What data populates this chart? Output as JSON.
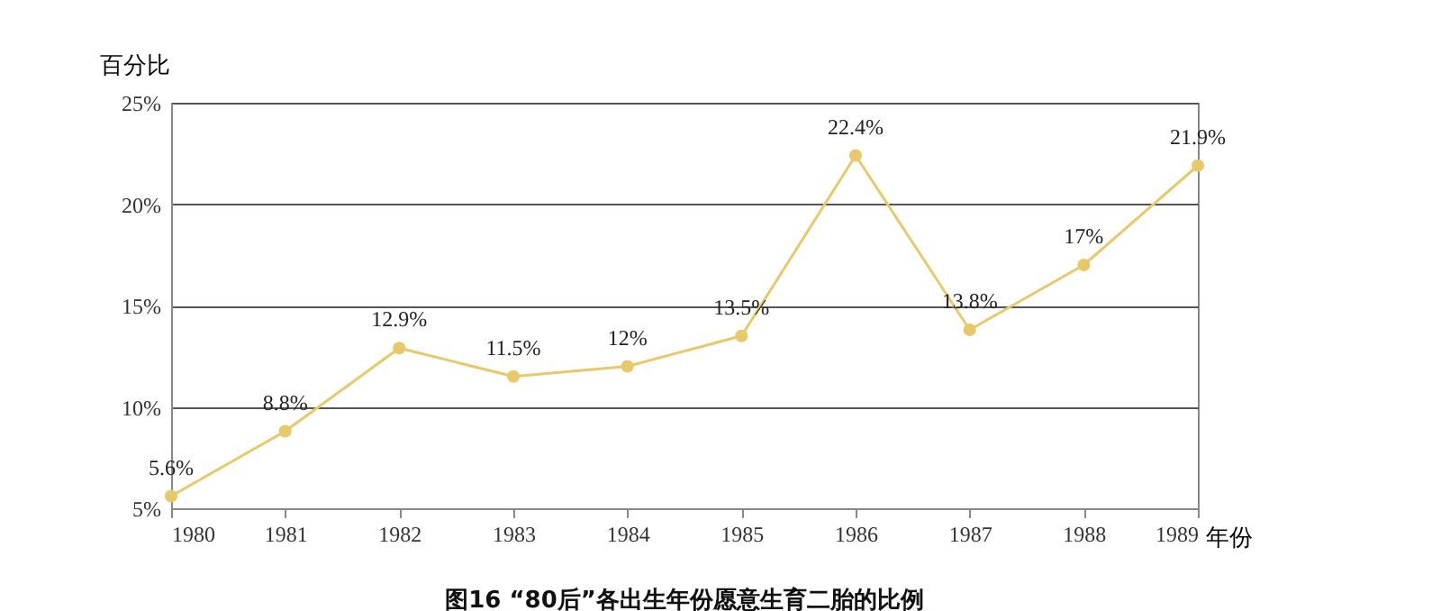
{
  "chart_data": {
    "type": "line",
    "title": "图16 “80后”各出生年份愿意生育二胎的比例",
    "xlabel": "年份",
    "ylabel": "百分比",
    "x": [
      1980,
      1981,
      1982,
      1983,
      1984,
      1985,
      1986,
      1987,
      1988,
      1989
    ],
    "series": [
      {
        "color": "#e8c96a",
        "values": [
          5.6,
          8.8,
          12.9,
          11.5,
          12,
          13.5,
          22.4,
          13.8,
          17,
          21.9
        ],
        "value_labels": [
          "5.6%",
          "8.8%",
          "12.9%",
          "11.5%",
          "12%",
          "13.5%",
          "22.4%",
          "13.8%",
          "17%",
          "21.9%"
        ]
      }
    ],
    "xlim": [
      1980,
      1989
    ],
    "xticks": [
      1980,
      1981,
      1982,
      1983,
      1984,
      1985,
      1986,
      1987,
      1988,
      1989
    ],
    "ylim": [
      5,
      25
    ],
    "yticks": [
      {
        "value": 5,
        "label": "5%"
      },
      {
        "value": 10,
        "label": "10%"
      },
      {
        "value": 15,
        "label": "15%"
      },
      {
        "value": 20,
        "label": "20%"
      },
      {
        "value": 25,
        "label": "25%"
      }
    ],
    "grid": "y",
    "marker": "circle",
    "line_style": "solid"
  }
}
